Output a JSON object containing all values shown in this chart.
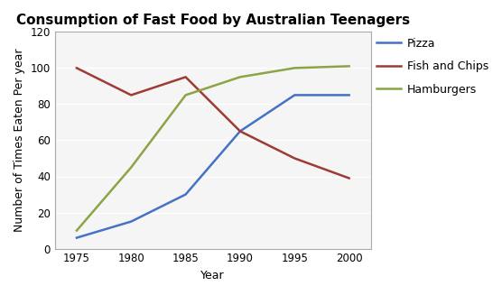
{
  "title": "Consumption of Fast Food by Australian Teenagers",
  "xlabel": "Year",
  "ylabel": "Number of Times Eaten Per year",
  "years": [
    1975,
    1980,
    1985,
    1990,
    1995,
    2000
  ],
  "pizza": [
    6,
    15,
    30,
    65,
    85,
    85
  ],
  "fish_and_chips": [
    100,
    85,
    95,
    65,
    50,
    39
  ],
  "hamburgers": [
    10,
    45,
    85,
    95,
    100,
    101
  ],
  "pizza_color": "#4472C4",
  "fish_color": "#9E3B35",
  "hamburgers_color": "#8BA446",
  "ylim": [
    0,
    120
  ],
  "yticks": [
    0,
    20,
    40,
    60,
    80,
    100,
    120
  ],
  "xticks": [
    1975,
    1980,
    1985,
    1990,
    1995,
    2000
  ],
  "linewidth": 1.8,
  "bg_color": "#FFFFFF",
  "plot_bg_color": "#F5F5F5",
  "grid_color": "#FFFFFF",
  "title_fontsize": 11,
  "label_fontsize": 9,
  "tick_fontsize": 8.5,
  "legend_fontsize": 9,
  "xlim_left": 1973,
  "xlim_right": 2002
}
